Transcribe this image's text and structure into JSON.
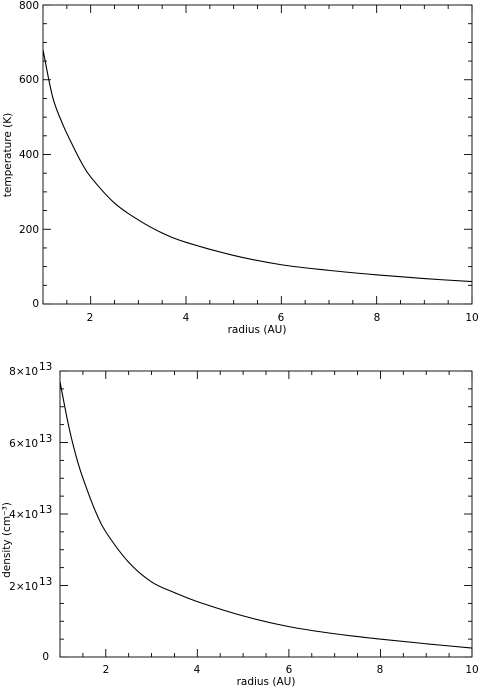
{
  "chart_data": [
    {
      "type": "line",
      "title": "",
      "xlabel": "radius (AU)",
      "ylabel": "temperature (K)",
      "xlim": [
        1,
        10
      ],
      "ylim": [
        0,
        800
      ],
      "xticks": [
        "2",
        "4",
        "6",
        "8",
        "10"
      ],
      "yticks": [
        "0",
        "200",
        "400",
        "600",
        "800"
      ],
      "grid": false,
      "series": [
        {
          "x": [
            1.0,
            1.2,
            1.4,
            1.6,
            1.8,
            2.0,
            2.5,
            3.0,
            3.5,
            4.0,
            5.0,
            6.0,
            7.0,
            8.0,
            9.0,
            10.0
          ],
          "y": [
            680,
            555,
            485,
            430,
            380,
            340,
            270,
            225,
            190,
            165,
            130,
            105,
            90,
            78,
            68,
            60
          ]
        }
      ]
    },
    {
      "type": "line",
      "title": "",
      "xlabel": "radius (AU)",
      "ylabel": "density (cm⁻³)",
      "xlim": [
        1,
        10
      ],
      "ylim": [
        0,
        80000000000000.0
      ],
      "xticks": [
        "2",
        "4",
        "6",
        "8",
        "10"
      ],
      "yticks": [
        "0",
        "2×10",
        "4×10",
        "6×10",
        "8×10"
      ],
      "ytick_exponent": "13",
      "grid": false,
      "series": [
        {
          "x": [
            1.0,
            1.2,
            1.4,
            1.6,
            1.8,
            2.0,
            2.5,
            3.0,
            3.5,
            4.0,
            5.0,
            6.0,
            7.0,
            8.0,
            9.0,
            10.0
          ],
          "y": [
            77000000000000.0,
            64000000000000.0,
            54000000000000.0,
            46500000000000.0,
            40000000000000.0,
            35000000000000.0,
            26500000000000.0,
            21000000000000.0,
            18000000000000.0,
            15500000000000.0,
            11500000000000.0,
            8500000000000.0,
            6500000000000.0,
            5000000000000.0,
            3700000000000.0,
            2500000000000.0
          ]
        }
      ]
    }
  ]
}
